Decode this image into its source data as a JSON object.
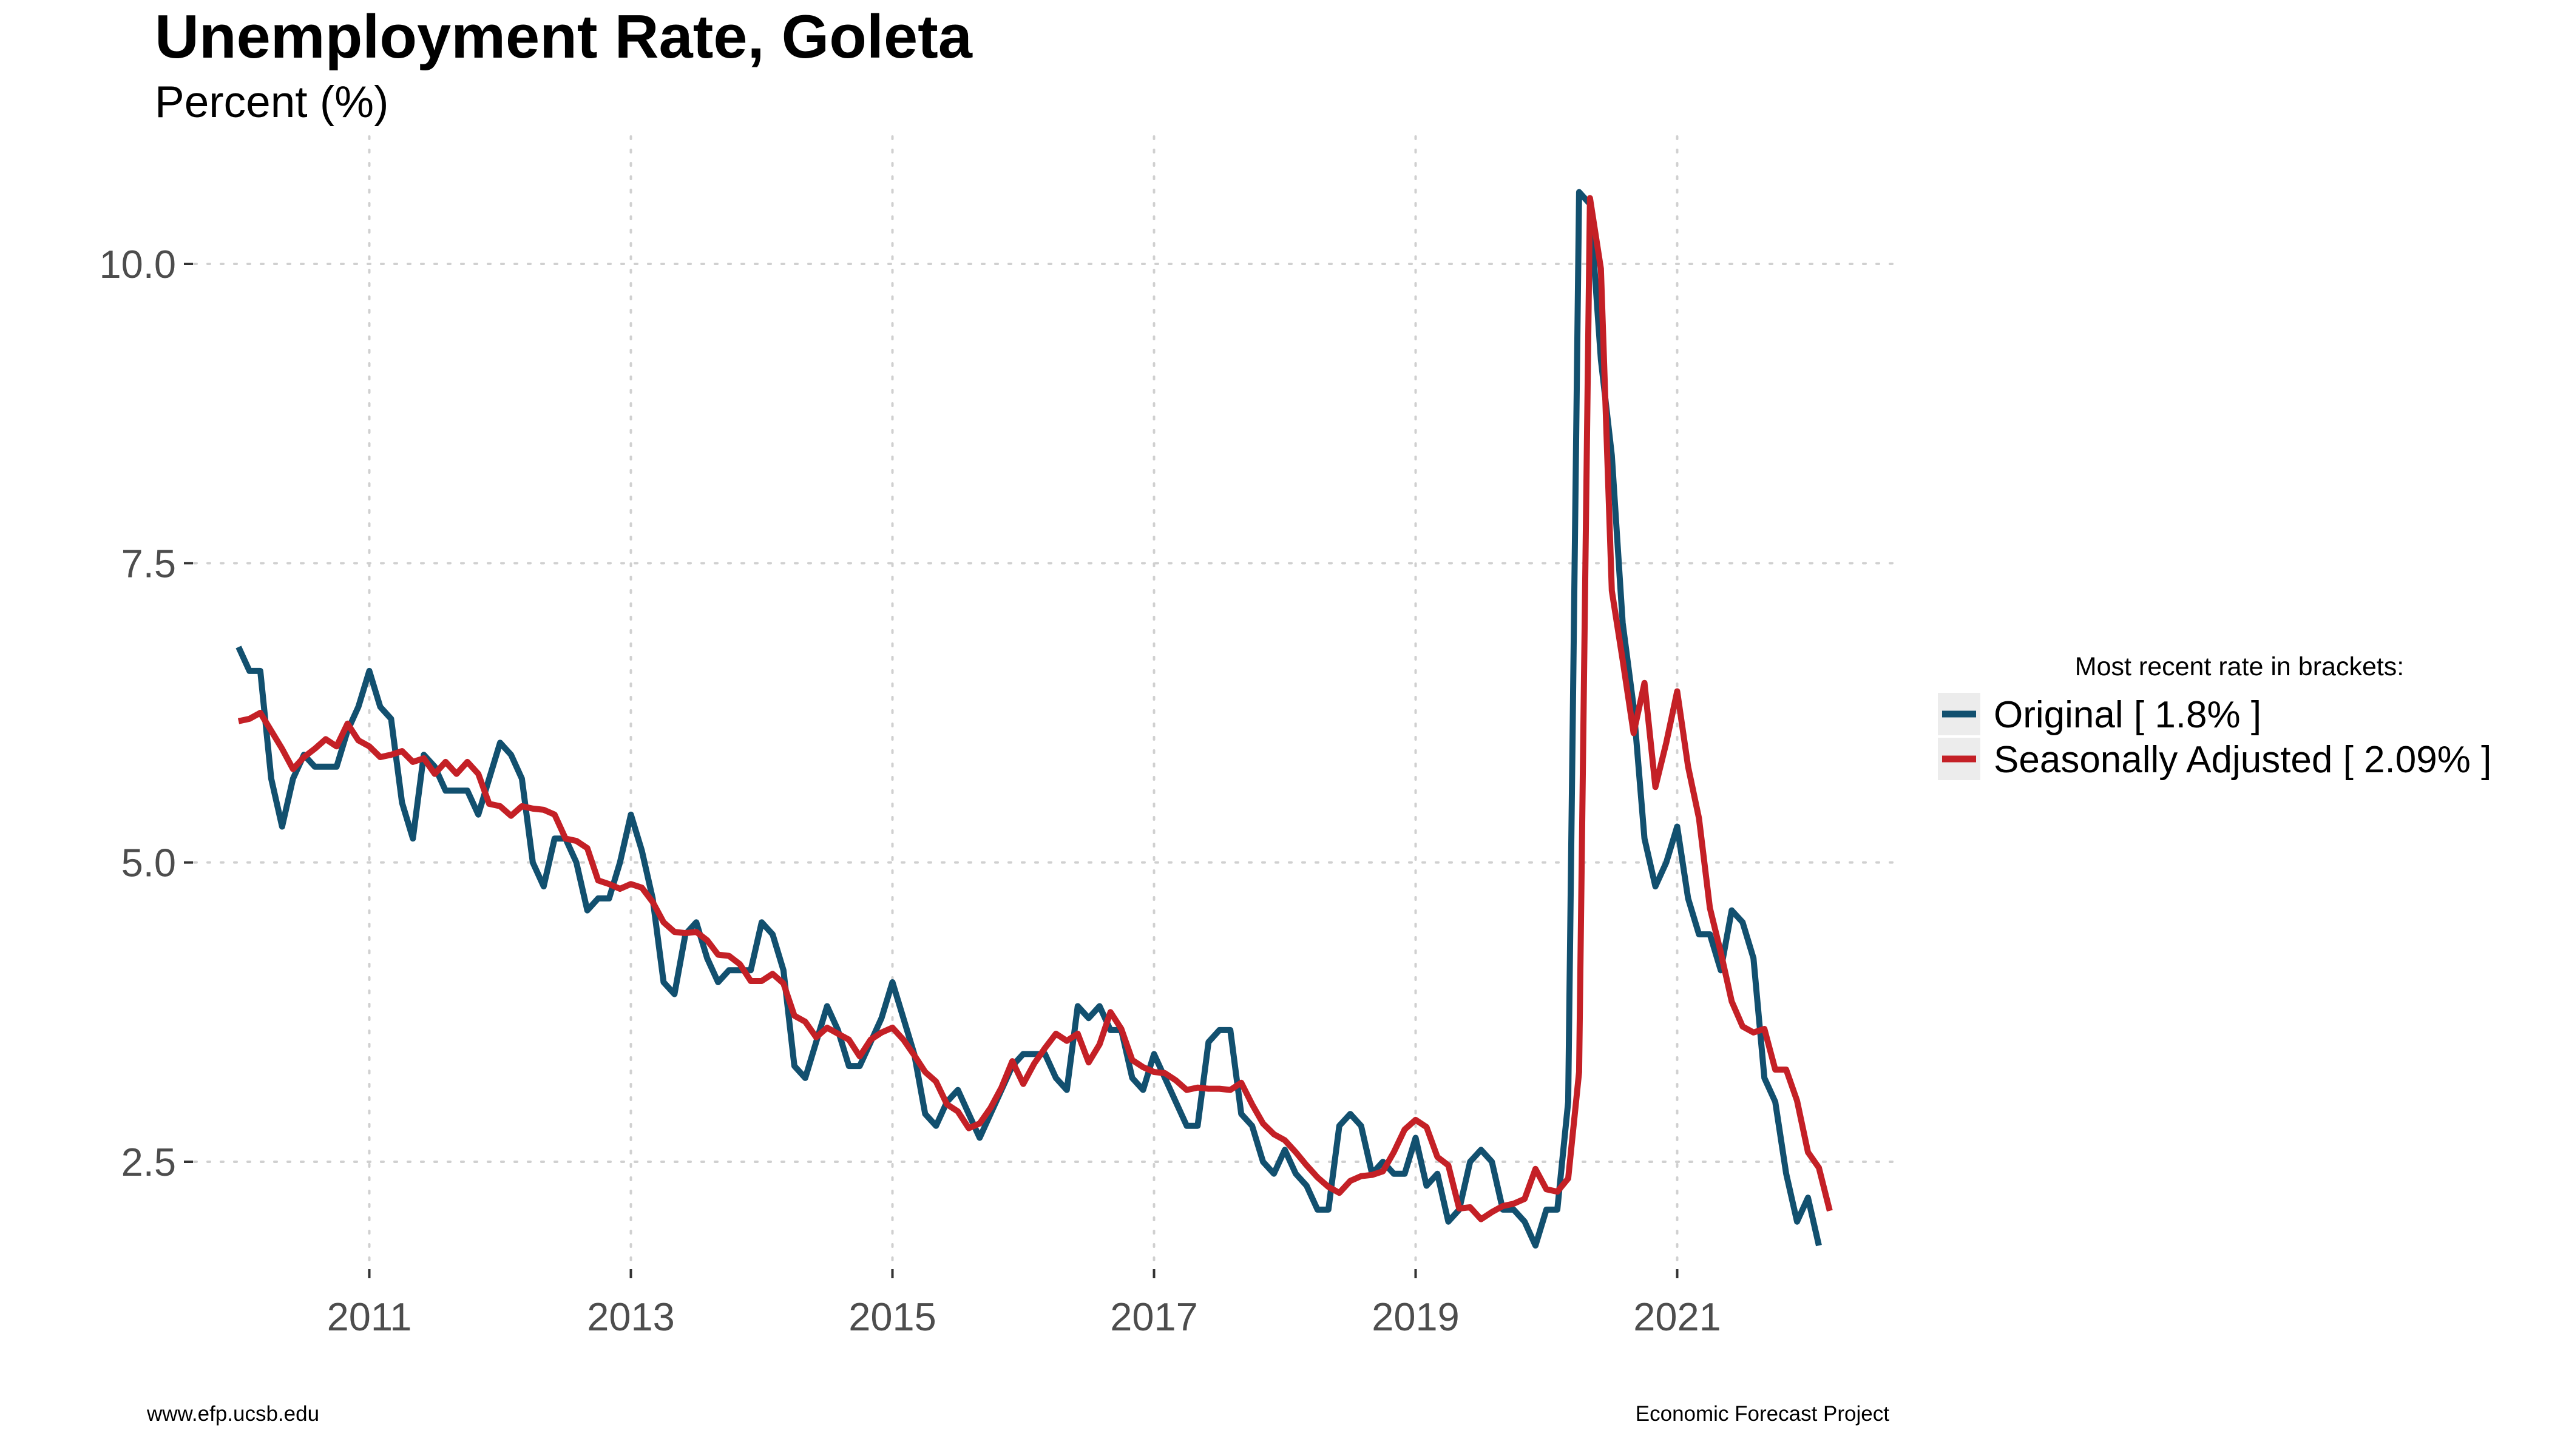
{
  "chart_data": {
    "type": "line",
    "title": "Unemployment Rate, Goleta",
    "subtitle": "Percent (%)",
    "xlabel": "",
    "ylabel": "",
    "x_start": "2010-01",
    "frequency": "monthly",
    "x_ticks": [
      "2011",
      "2013",
      "2015",
      "2017",
      "2019",
      "2021"
    ],
    "y_ticks": [
      "2.5",
      "5.0",
      "7.5",
      "10.0"
    ],
    "ylim": [
      1.5,
      10.8
    ],
    "xlim": [
      "2009-10",
      "2022-06"
    ],
    "grid": true,
    "legend_position": "right",
    "legend_title": "Most recent rate in brackets:",
    "series": [
      {
        "name": "Original [ 1.8% ]",
        "color": "#12506f",
        "values": [
          6.8,
          6.6,
          6.6,
          5.7,
          5.3,
          5.7,
          5.9,
          5.8,
          5.8,
          5.8,
          6.1,
          6.3,
          6.6,
          6.3,
          6.2,
          5.5,
          5.2,
          5.9,
          5.8,
          5.6,
          5.6,
          5.6,
          5.4,
          5.7,
          6.0,
          5.9,
          5.7,
          5.0,
          4.8,
          5.2,
          5.2,
          5.0,
          4.6,
          4.7,
          4.7,
          5.0,
          5.4,
          5.1,
          4.7,
          4.0,
          3.9,
          4.4,
          4.5,
          4.2,
          4.0,
          4.1,
          4.1,
          4.1,
          4.5,
          4.4,
          4.1,
          3.3,
          3.2,
          3.5,
          3.8,
          3.6,
          3.3,
          3.3,
          3.5,
          3.7,
          4.0,
          3.7,
          3.4,
          2.9,
          2.8,
          3.0,
          3.1,
          2.9,
          2.7,
          2.9,
          3.1,
          3.3,
          3.4,
          3.4,
          3.4,
          3.2,
          3.1,
          3.8,
          3.7,
          3.8,
          3.6,
          3.6,
          3.2,
          3.1,
          3.4,
          3.2,
          3.0,
          2.8,
          2.8,
          3.5,
          3.6,
          3.6,
          2.9,
          2.8,
          2.5,
          2.4,
          2.6,
          2.4,
          2.3,
          2.1,
          2.1,
          2.8,
          2.9,
          2.8,
          2.4,
          2.5,
          2.4,
          2.4,
          2.7,
          2.3,
          2.4,
          2.0,
          2.1,
          2.5,
          2.6,
          2.5,
          2.1,
          2.1,
          2.0,
          1.8,
          2.1,
          2.1,
          3.0,
          10.6,
          10.5,
          9.2,
          8.4,
          7.0,
          6.3,
          5.2,
          4.8,
          5.0,
          5.3,
          4.7,
          4.4,
          4.4,
          4.1,
          4.6,
          4.5,
          4.2,
          3.2,
          3.0,
          2.4,
          2.0,
          2.2,
          1.8
        ]
      },
      {
        "name": "Seasonally Adjusted [ 2.09% ]",
        "color": "#c42026",
        "values": [
          6.18,
          6.2,
          6.25,
          6.1,
          5.95,
          5.78,
          5.88,
          5.95,
          6.03,
          5.97,
          6.16,
          6.02,
          5.97,
          5.88,
          5.9,
          5.93,
          5.84,
          5.87,
          5.74,
          5.84,
          5.74,
          5.84,
          5.74,
          5.49,
          5.47,
          5.39,
          5.47,
          5.45,
          5.44,
          5.4,
          5.2,
          5.18,
          5.12,
          4.85,
          4.82,
          4.78,
          4.82,
          4.79,
          4.67,
          4.5,
          4.42,
          4.41,
          4.42,
          4.35,
          4.23,
          4.22,
          4.15,
          4.01,
          4.01,
          4.07,
          3.99,
          3.72,
          3.67,
          3.54,
          3.62,
          3.57,
          3.52,
          3.38,
          3.52,
          3.58,
          3.62,
          3.52,
          3.39,
          3.25,
          3.17,
          2.98,
          2.92,
          2.78,
          2.82,
          2.95,
          3.12,
          3.34,
          3.15,
          3.32,
          3.45,
          3.57,
          3.51,
          3.57,
          3.33,
          3.48,
          3.75,
          3.61,
          3.35,
          3.29,
          3.25,
          3.24,
          3.18,
          3.1,
          3.12,
          3.11,
          3.11,
          3.1,
          3.16,
          2.98,
          2.82,
          2.73,
          2.68,
          2.58,
          2.47,
          2.37,
          2.29,
          2.24,
          2.34,
          2.38,
          2.39,
          2.42,
          2.58,
          2.77,
          2.85,
          2.79,
          2.54,
          2.47,
          2.11,
          2.12,
          2.02,
          2.08,
          2.13,
          2.15,
          2.19,
          2.44,
          2.27,
          2.25,
          2.36,
          3.25,
          10.55,
          9.96,
          7.27,
          6.69,
          6.08,
          6.5,
          5.63,
          6.0,
          6.43,
          5.8,
          5.37,
          4.62,
          4.25,
          3.84,
          3.63,
          3.58,
          3.61,
          3.27,
          3.27,
          3.01,
          2.58,
          2.45,
          2.09
        ]
      }
    ]
  },
  "captions": {
    "left": "www.efp.ucsb.edu",
    "right": "Economic Forecast Project"
  }
}
